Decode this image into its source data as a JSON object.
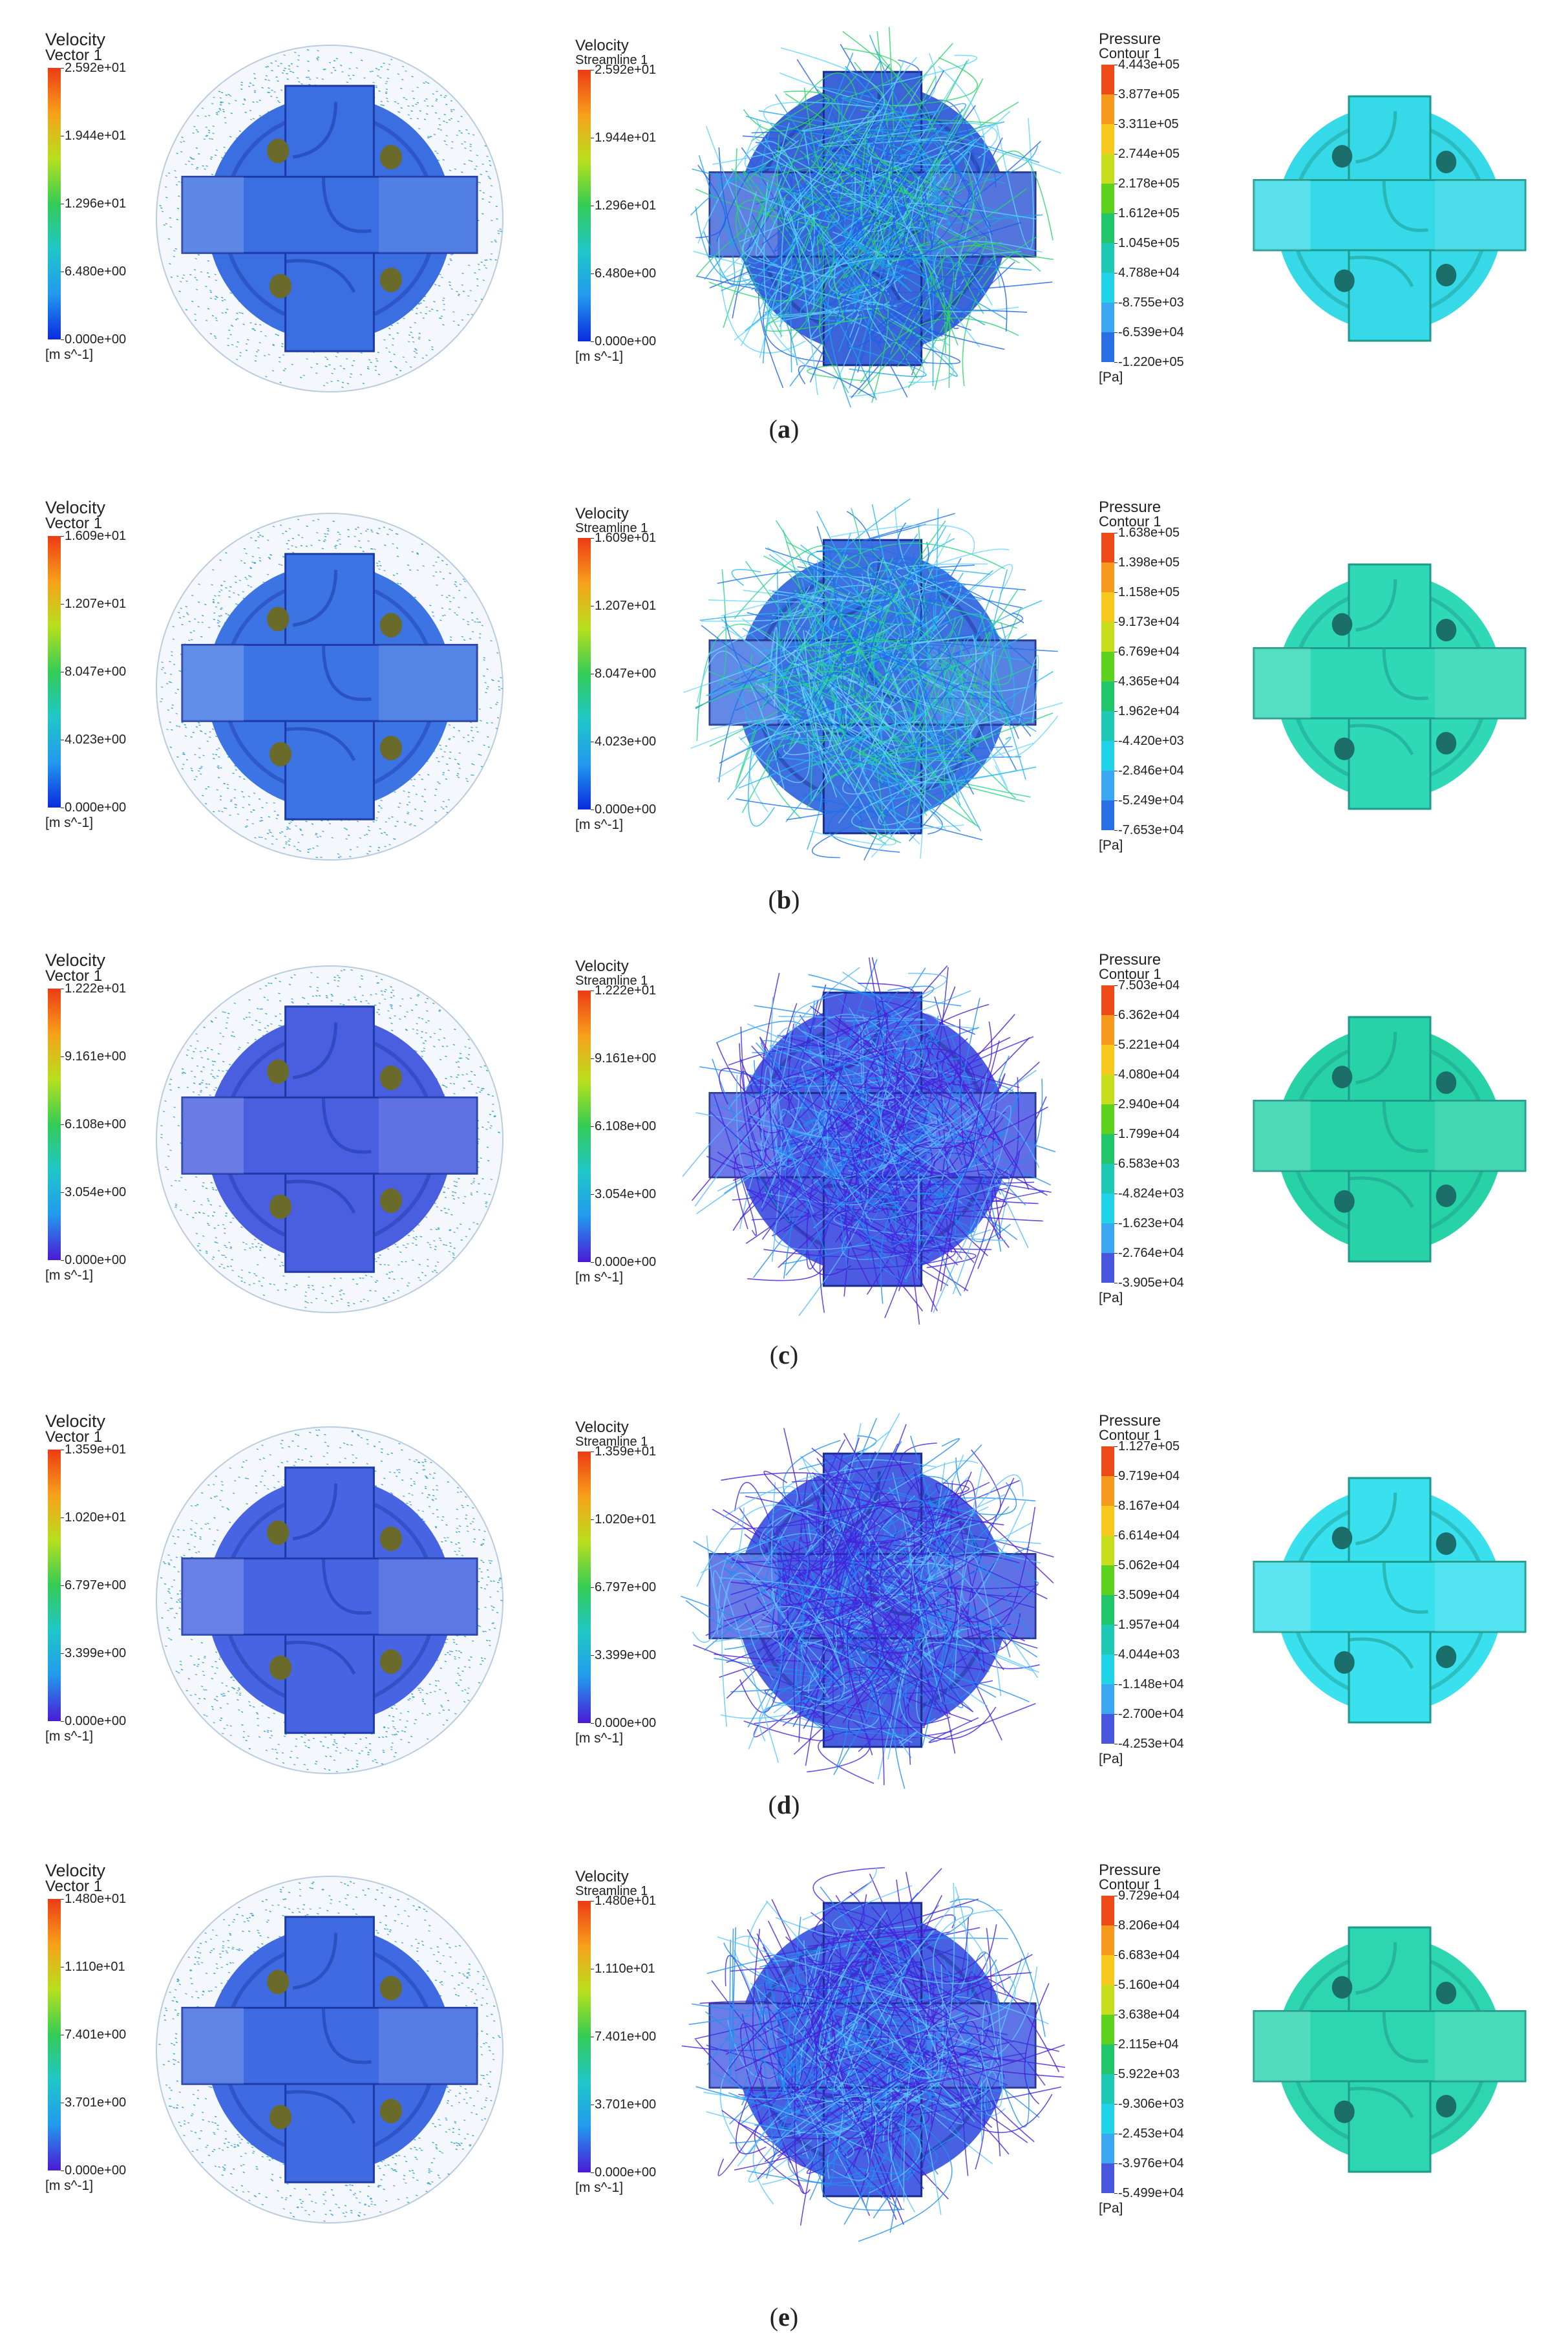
{
  "rows": [
    {
      "caption_open": "(",
      "caption_letter": "a",
      "caption_close": ")",
      "vector": {
        "title": "Velocity",
        "sub": "Vector 1",
        "ticks": [
          "2.592e+01",
          "1.944e+01",
          "1.296e+01",
          "6.480e+00",
          "0.000e+00"
        ],
        "unit": "[m s^-1]"
      },
      "stream": {
        "title": "Velocity",
        "sub": "Streamline 1",
        "ticks": [
          "2.592e+01",
          "1.944e+01",
          "1.296e+01",
          "6.480e+00",
          "0.000e+00"
        ],
        "unit": "[m s^-1]"
      },
      "pressure": {
        "title": "Pressure",
        "sub": "Contour 1",
        "ticks": [
          "4.443e+05",
          "3.877e+05",
          "3.311e+05",
          "2.744e+05",
          "2.178e+05",
          "1.612e+05",
          "1.045e+05",
          "4.788e+04",
          "-8.755e+03",
          "-6.539e+04",
          "-1.220e+05"
        ],
        "unit": "[Pa]"
      }
    },
    {
      "caption_open": "(",
      "caption_letter": "b",
      "caption_close": ")",
      "vector": {
        "title": "Velocity",
        "sub": "Vector 1",
        "ticks": [
          "1.609e+01",
          "1.207e+01",
          "8.047e+00",
          "4.023e+00",
          "0.000e+00"
        ],
        "unit": "[m s^-1]"
      },
      "stream": {
        "title": "Velocity",
        "sub": "Streamline 1",
        "ticks": [
          "1.609e+01",
          "1.207e+01",
          "8.047e+00",
          "4.023e+00",
          "0.000e+00"
        ],
        "unit": "[m s^-1]"
      },
      "pressure": {
        "title": "Pressure",
        "sub": "Contour 1",
        "ticks": [
          "1.638e+05",
          "1.398e+05",
          "1.158e+05",
          "9.173e+04",
          "6.769e+04",
          "4.365e+04",
          "1.962e+04",
          "-4.420e+03",
          "-2.846e+04",
          "-5.249e+04",
          "-7.653e+04"
        ],
        "unit": "[Pa]"
      }
    },
    {
      "caption_open": "(",
      "caption_letter": "c",
      "caption_close": ")",
      "vector": {
        "title": "Velocity",
        "sub": "Vector 1",
        "ticks": [
          "1.222e+01",
          "9.161e+00",
          "6.108e+00",
          "3.054e+00",
          "0.000e+00"
        ],
        "unit": "[m s^-1]"
      },
      "stream": {
        "title": "Velocity",
        "sub": "Streamline 1",
        "ticks": [
          "1.222e+01",
          "9.161e+00",
          "6.108e+00",
          "3.054e+00",
          "0.000e+00"
        ],
        "unit": "[m s^-1]"
      },
      "pressure": {
        "title": "Pressure",
        "sub": "Contour 1",
        "ticks": [
          "7.503e+04",
          "6.362e+04",
          "5.221e+04",
          "4.080e+04",
          "2.940e+04",
          "1.799e+04",
          "6.583e+03",
          "-4.824e+03",
          "-1.623e+04",
          "-2.764e+04",
          "-3.905e+04"
        ],
        "unit": "[Pa]"
      }
    },
    {
      "caption_open": "(",
      "caption_letter": "d",
      "caption_close": ")",
      "vector": {
        "title": "Velocity",
        "sub": "Vector 1",
        "ticks": [
          "1.359e+01",
          "1.020e+01",
          "6.797e+00",
          "3.399e+00",
          "0.000e+00"
        ],
        "unit": "[m s^-1]"
      },
      "stream": {
        "title": "Velocity",
        "sub": "Streamline 1",
        "ticks": [
          "1.359e+01",
          "1.020e+01",
          "6.797e+00",
          "3.399e+00",
          "0.000e+00"
        ],
        "unit": "[m s^-1]"
      },
      "pressure": {
        "title": "Pressure",
        "sub": "Contour 1",
        "ticks": [
          "1.127e+05",
          "9.719e+04",
          "8.167e+04",
          "6.614e+04",
          "5.062e+04",
          "3.509e+04",
          "1.957e+04",
          "4.044e+03",
          "-1.148e+04",
          "-2.700e+04",
          "-4.253e+04"
        ],
        "unit": "[Pa]"
      }
    },
    {
      "caption_open": "(",
      "caption_letter": "e",
      "caption_close": ")",
      "vector": {
        "title": "Velocity",
        "sub": "Vector 1",
        "ticks": [
          "1.480e+01",
          "1.110e+01",
          "7.401e+00",
          "3.701e+00",
          "0.000e+00"
        ],
        "unit": "[m s^-1]"
      },
      "stream": {
        "title": "Velocity",
        "sub": "Streamline 1",
        "ticks": [
          "1.480e+01",
          "1.110e+01",
          "7.401e+00",
          "3.701e+00",
          "0.000e+00"
        ],
        "unit": "[m s^-1]"
      },
      "pressure": {
        "title": "Pressure",
        "sub": "Contour 1",
        "ticks": [
          "9.729e+04",
          "8.206e+04",
          "6.683e+04",
          "5.160e+04",
          "3.638e+04",
          "2.115e+04",
          "5.922e+03",
          "-9.306e+03",
          "-2.453e+04",
          "-3.976e+04",
          "-5.499e+04"
        ],
        "unit": "[Pa]"
      }
    }
  ],
  "colors": {
    "velocity_scale": [
      "#ee3a14",
      "#f7a11a",
      "#b8e01c",
      "#33cc55",
      "#1fc7c9",
      "#2299ee",
      "#0a2be0"
    ],
    "velocity_scale_low_purple": [
      "#ee3a14",
      "#f7a11a",
      "#b8e01c",
      "#33cc55",
      "#1fc7c9",
      "#2299ee",
      "#4a1ad6"
    ],
    "pressure_scale": [
      "#ee4a16",
      "#f59a1c",
      "#f6c81c",
      "#c6dc1c",
      "#5cd21e",
      "#22c66a",
      "#1fc9b6",
      "#21d3e8",
      "#3aa8f0",
      "#2a6ee6",
      "#1b2fd4"
    ],
    "pressure_scale_low_purple": [
      "#ee4a16",
      "#f59a1c",
      "#f6c81c",
      "#c6dc1c",
      "#5cd21e",
      "#22c66a",
      "#1fc9b6",
      "#21d3e8",
      "#3aa8f0",
      "#4a56e0",
      "#5a1ad0"
    ],
    "body_blue": "#3b6ee0",
    "body_purple": "#4c5be0",
    "pressure_body_cyan": "#33d8e6",
    "pressure_body_teal": "#2fd6b4"
  }
}
